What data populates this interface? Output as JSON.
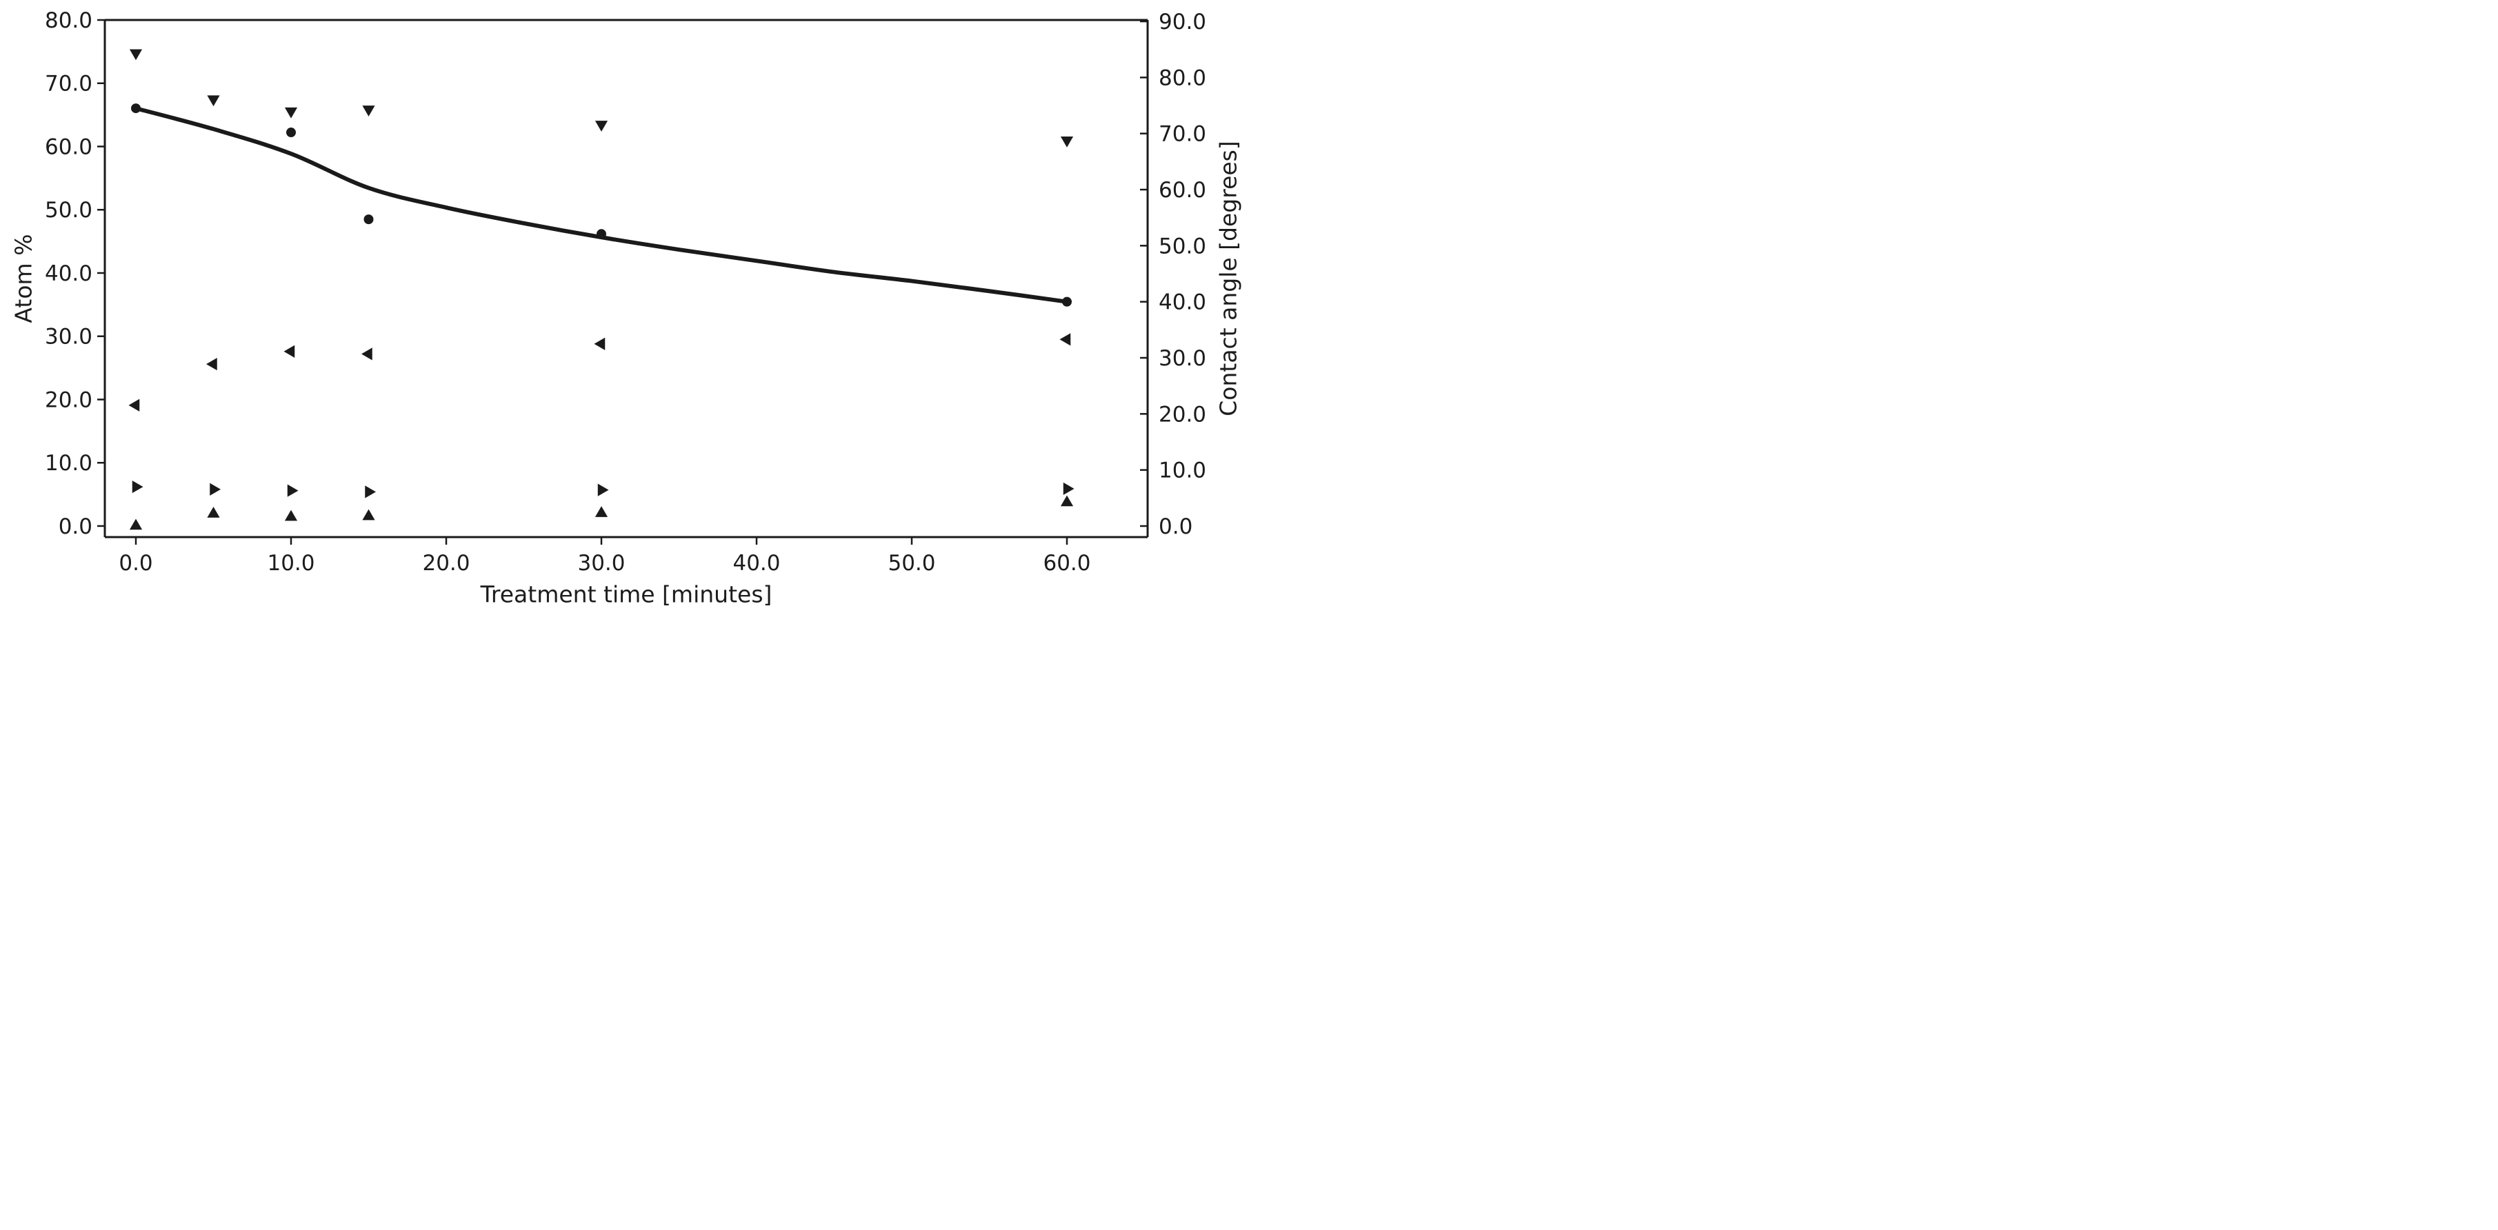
{
  "colors": {
    "background": "#ffffff",
    "ink": "#1a1a1a"
  },
  "chart_data": {
    "type": "scatter",
    "title": "",
    "xlabel": "Treatment time [minutes]",
    "ylabel_left": "Atom %",
    "ylabel_right": "Contact angle [degrees]",
    "grid": false,
    "legend": "none",
    "xlim": [
      -2.0,
      65.2
    ],
    "ylim_left": [
      -1.75,
      80.0
    ],
    "ylim_right": [
      -1.97,
      90.25
    ],
    "x_tick_values": [
      0,
      10,
      20,
      30,
      40,
      50,
      60
    ],
    "x_tick_labels": [
      "0.0",
      "10.0",
      "20.0",
      "30.0",
      "40.0",
      "50.0",
      "60.0"
    ],
    "y_tick_values_left": [
      0,
      10,
      20,
      30,
      40,
      50,
      60,
      70,
      80
    ],
    "y_tick_labels_left": [
      "0.0",
      "10.0",
      "20.0",
      "30.0",
      "40.0",
      "50.0",
      "60.0",
      "70.0",
      "80.0"
    ],
    "y_tick_values_right": [
      0,
      10,
      20,
      30,
      40,
      50,
      60,
      70,
      80,
      90
    ],
    "y_tick_labels_right": [
      "0.0",
      "10.0",
      "20.0",
      "30.0",
      "40.0",
      "50.0",
      "60.0",
      "70.0",
      "80.0",
      "90.0"
    ],
    "series": [
      {
        "name": "series-triangle-down",
        "marker": "triangle-down",
        "axis": "left",
        "x": [
          0,
          5,
          10,
          15,
          30,
          60
        ],
        "y": [
          74.8,
          67.5,
          65.6,
          65.9,
          63.5,
          61.0
        ]
      },
      {
        "name": "series-circle-contact-angle",
        "marker": "circle",
        "axis": "right",
        "x": [
          0,
          10,
          15,
          30,
          60
        ],
        "y": [
          74.5,
          70.2,
          54.7,
          52.1,
          40.0
        ]
      },
      {
        "name": "series-triangle-left",
        "marker": "triangle-left",
        "axis": "left",
        "x": [
          0,
          5,
          10,
          15,
          30,
          60
        ],
        "y": [
          19.1,
          25.6,
          27.6,
          27.2,
          28.8,
          29.5
        ]
      },
      {
        "name": "series-triangle-right",
        "marker": "triangle-right",
        "axis": "left",
        "x": [
          0,
          5,
          10,
          15,
          30,
          60
        ],
        "y": [
          6.2,
          5.8,
          5.6,
          5.4,
          5.7,
          5.9
        ]
      },
      {
        "name": "series-triangle-up",
        "marker": "triangle-up",
        "axis": "left",
        "x": [
          0,
          5,
          10,
          15,
          30,
          60
        ],
        "y": [
          0.0,
          1.9,
          1.4,
          1.5,
          2.0,
          3.7
        ]
      }
    ],
    "fit_curve": {
      "name": "contact-angle-fit-curve",
      "axis": "right",
      "x": [
        0,
        5,
        10,
        15,
        20,
        25,
        30,
        35,
        40,
        45,
        50,
        55,
        60
      ],
      "y": [
        74.5,
        70.8,
        66.4,
        60.3,
        56.8,
        54.0,
        51.5,
        49.3,
        47.3,
        45.3,
        43.7,
        41.9,
        40.0
      ]
    }
  }
}
